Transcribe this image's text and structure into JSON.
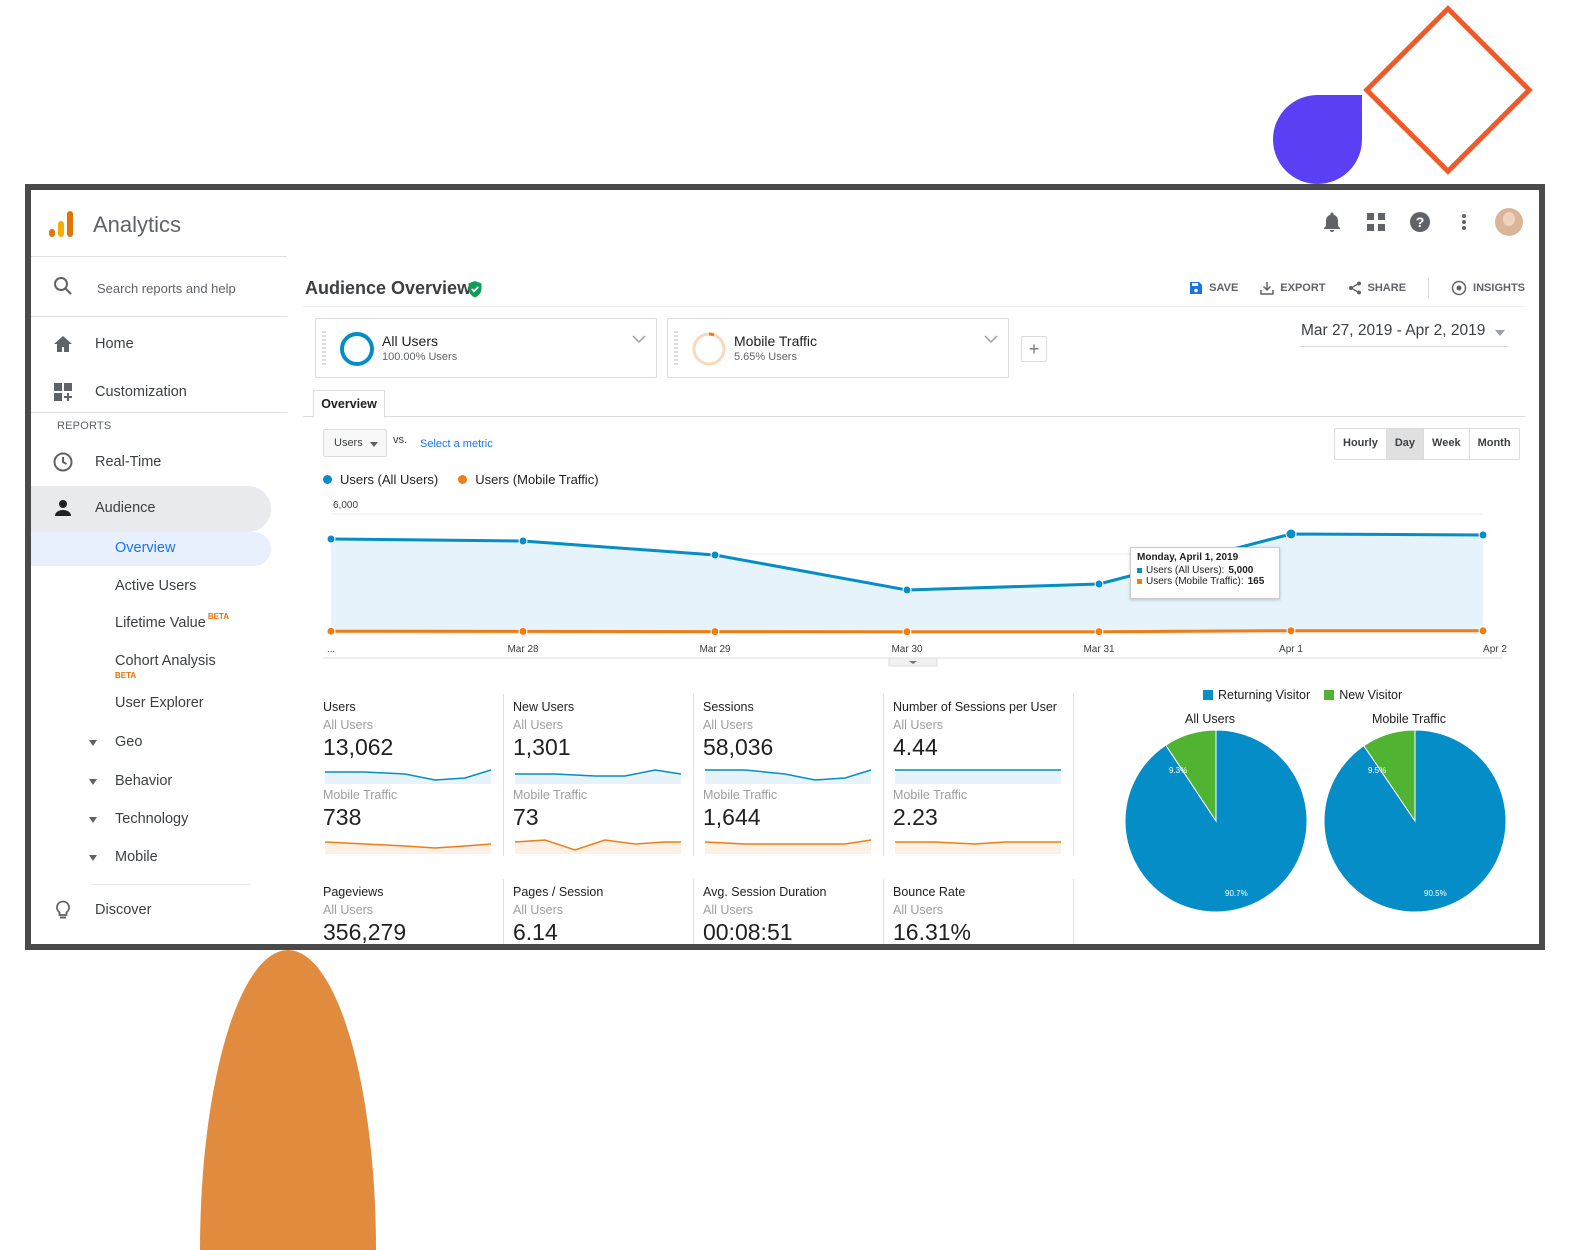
{
  "app": {
    "title": "Analytics"
  },
  "sidebar": {
    "search_placeholder": "Search reports and help",
    "home": "Home",
    "customization": "Customization",
    "reports_label": "REPORTS",
    "realtime": "Real-Time",
    "audience": "Audience",
    "audience_items": [
      {
        "label": "Overview"
      },
      {
        "label": "Active Users"
      },
      {
        "label": "Lifetime Value",
        "badge": "BETA"
      },
      {
        "label": "Cohort Analysis",
        "badge": "BETA"
      },
      {
        "label": "User Explorer"
      }
    ],
    "groups": [
      "Geo",
      "Behavior",
      "Technology",
      "Mobile"
    ],
    "discover": "Discover"
  },
  "header": {
    "title": "Audience Overview",
    "actions": {
      "save": "SAVE",
      "export": "EXPORT",
      "share": "SHARE",
      "insights": "INSIGHTS"
    }
  },
  "segments": [
    {
      "name": "All Users",
      "pct": "100.00% Users",
      "color": "#058dc7"
    },
    {
      "name": "Mobile Traffic",
      "pct": "5.65% Users",
      "color": "#ed7e17"
    }
  ],
  "add_segment": "+",
  "date_range": "Mar 27, 2019 - Apr 2, 2019",
  "tabs": {
    "overview": "Overview"
  },
  "controls": {
    "metric": "Users",
    "vs": "vs.",
    "select_metric": "Select a metric",
    "granularity": [
      "Hourly",
      "Day",
      "Week",
      "Month"
    ],
    "granularity_selected": "Day"
  },
  "chart_data": {
    "type": "line",
    "x": [
      "...",
      "Mar 28",
      "Mar 29",
      "Mar 30",
      "Mar 31",
      "Apr 1",
      "Apr 2"
    ],
    "y_ticks": [
      "6,000",
      "4,000",
      "2,000"
    ],
    "ylim": [
      0,
      6000
    ],
    "series": [
      {
        "name": "Users (All Users)",
        "color": "#058dc7",
        "values": [
          4750,
          4650,
          3950,
          2200,
          2500,
          5000,
          4950
        ]
      },
      {
        "name": "Users (Mobile Traffic)",
        "color": "#ed7e17",
        "values": [
          140,
          130,
          120,
          110,
          115,
          165,
          160
        ]
      }
    ],
    "tooltip": {
      "title": "Monday, April 1, 2019",
      "lines": [
        {
          "label": "Users (All Users):",
          "value": "5,000",
          "color": "#058dc7"
        },
        {
          "label": "Users (Mobile Traffic):",
          "value": "165",
          "color": "#ed7e17"
        }
      ]
    }
  },
  "metrics": [
    {
      "title": "Users",
      "seg1": "All Users",
      "val1": "13,062",
      "seg2": "Mobile Traffic",
      "val2": "738"
    },
    {
      "title": "New Users",
      "seg1": "All Users",
      "val1": "1,301",
      "seg2": "Mobile Traffic",
      "val2": "73"
    },
    {
      "title": "Sessions",
      "seg1": "All Users",
      "val1": "58,036",
      "seg2": "Mobile Traffic",
      "val2": "1,644"
    },
    {
      "title": "Number of Sessions per User",
      "seg1": "All Users",
      "val1": "4.44",
      "seg2": "Mobile Traffic",
      "val2": "2.23"
    },
    {
      "title": "Pageviews",
      "seg1": "All Users",
      "val1": "356,279"
    },
    {
      "title": "Pages / Session",
      "seg1": "All Users",
      "val1": "6.14"
    },
    {
      "title": "Avg. Session Duration",
      "seg1": "All Users",
      "val1": "00:08:51"
    },
    {
      "title": "Bounce Rate",
      "seg1": "All Users",
      "val1": "16.31%"
    }
  ],
  "pies": {
    "legend": [
      {
        "label": "Returning Visitor",
        "color": "#058dc7"
      },
      {
        "label": "New Visitor",
        "color": "#50b432"
      }
    ],
    "charts": [
      {
        "title": "All Users",
        "returning": 90.7,
        "new": 9.3,
        "returning_label": "90.7%",
        "new_label": "9.3%"
      },
      {
        "title": "Mobile Traffic",
        "returning": 90.5,
        "new": 9.5,
        "returning_label": "90.5%",
        "new_label": "9.5%"
      }
    ]
  }
}
